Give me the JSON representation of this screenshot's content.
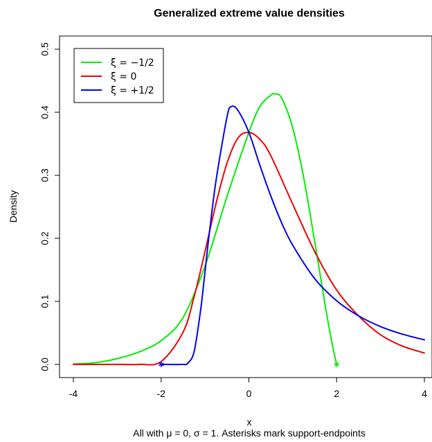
{
  "chart_data": {
    "type": "line",
    "title": "Generalized extreme value densities",
    "xlabel": "x",
    "ylabel": "Density",
    "subtitle": "All with μ = 0, σ = 1. Asterisks mark support-endpoints",
    "xlim": [
      -4,
      4
    ],
    "ylim": [
      0,
      0.5
    ],
    "xticks": [
      "-4",
      "-2",
      "0",
      "2",
      "4"
    ],
    "yticks": [
      "0.0",
      "0.1",
      "0.2",
      "0.3",
      "0.4",
      "0.5"
    ],
    "grid": false,
    "legend_position": "top-left",
    "series": [
      {
        "name": "ξ = −1/2",
        "color": "#00ee00",
        "x": [
          -4,
          -3.5,
          -3,
          -2.5,
          -2,
          -1.5,
          -1,
          -0.5,
          0,
          0.25,
          0.5,
          0.6,
          0.75,
          1,
          1.25,
          1.5,
          1.75,
          1.9,
          2
        ],
        "y": [
          0.0006,
          0.0027,
          0.0092,
          0.0198,
          0.0377,
          0.0744,
          0.156,
          0.266,
          0.368,
          0.409,
          0.427,
          0.429,
          0.422,
          0.375,
          0.296,
          0.195,
          0.089,
          0.032,
          0
        ]
      },
      {
        "name": "ξ = 0",
        "color": "#ee0000",
        "x": [
          -4,
          -3,
          -2.5,
          -2,
          -1.5,
          -1.25,
          -1,
          -0.75,
          -0.5,
          -0.25,
          0,
          0.25,
          0.5,
          1,
          1.5,
          2,
          2.5,
          3,
          3.5,
          4
        ],
        "y": [
          0,
          0,
          1e-05,
          0.0045,
          0.051,
          0.107,
          0.179,
          0.255,
          0.319,
          0.359,
          0.368,
          0.357,
          0.331,
          0.254,
          0.179,
          0.118,
          0.077,
          0.047,
          0.029,
          0.018
        ]
      },
      {
        "name": "ξ = +1/2",
        "color": "#0000ee",
        "x": [
          -2,
          -1.5,
          -1.4,
          -1.25,
          -1.1,
          -1,
          -0.9,
          -0.75,
          -0.5,
          -0.4,
          -0.25,
          0,
          0.25,
          0.5,
          0.75,
          1,
          1.5,
          2,
          2.5,
          3,
          3.5,
          4
        ],
        "y": [
          0,
          1e-05,
          0.0015,
          0.0198,
          0.0862,
          0.147,
          0.209,
          0.291,
          0.392,
          0.409,
          0.403,
          0.368,
          0.316,
          0.267,
          0.224,
          0.189,
          0.136,
          0.101,
          0.077,
          0.06,
          0.048,
          0.039
        ]
      }
    ],
    "endpoints": [
      {
        "x": -2,
        "y": 0,
        "color": "#0000ee",
        "marker": "*"
      },
      {
        "x": 2,
        "y": 0,
        "color": "#00ee00",
        "marker": "*"
      }
    ]
  }
}
